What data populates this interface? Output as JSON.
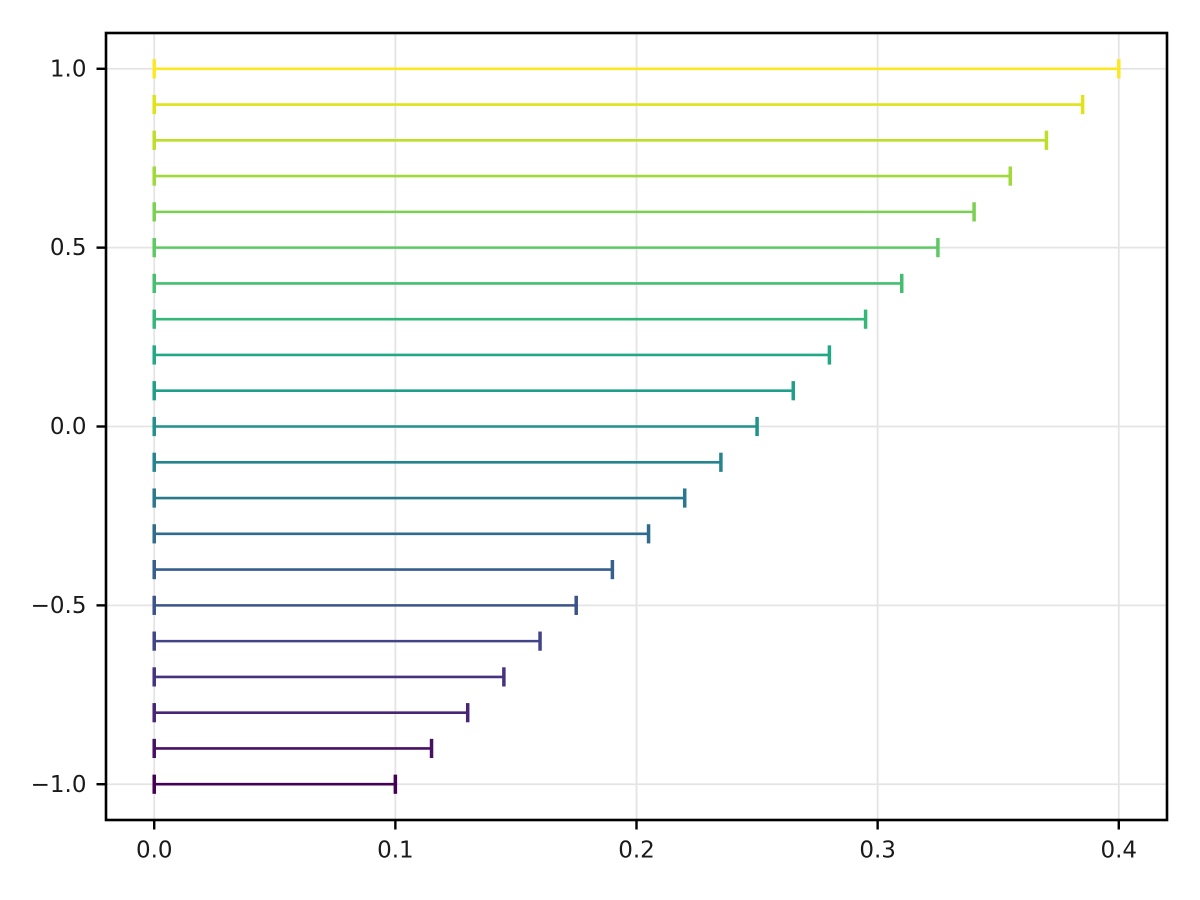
{
  "chart_data": {
    "type": "errorbar",
    "orientation": "horizontal",
    "grid": true,
    "grid_color": "#e4e4e4",
    "background_color": "#ffffff",
    "axis_color": "#000000",
    "tick_label_color": "#1a1a1a",
    "xlim": [
      -0.02,
      0.42
    ],
    "ylim": [
      -1.1,
      1.1
    ],
    "xticks": [
      0.0,
      0.1,
      0.2,
      0.3,
      0.4
    ],
    "xtick_labels": [
      "0.0",
      "0.1",
      "0.2",
      "0.3",
      "0.4"
    ],
    "yticks": [
      1.0,
      0.5,
      0.0,
      -0.5,
      -1.0
    ],
    "ytick_labels": [
      "1.0",
      "0.5",
      "0.0",
      "−0.5",
      "−1.0"
    ],
    "colormap": "viridis",
    "points": [
      {
        "y": 1.0,
        "x0": 0.0,
        "x1": 0.4,
        "color": "#fde725"
      },
      {
        "y": 0.9,
        "x0": 0.0,
        "x1": 0.385,
        "color": "#dfe318"
      },
      {
        "y": 0.8,
        "x0": 0.0,
        "x1": 0.37,
        "color": "#bddf26"
      },
      {
        "y": 0.7,
        "x0": 0.0,
        "x1": 0.355,
        "color": "#a0da39"
      },
      {
        "y": 0.6,
        "x0": 0.0,
        "x1": 0.34,
        "color": "#7ad151"
      },
      {
        "y": 0.5,
        "x0": 0.0,
        "x1": 0.325,
        "color": "#5ec962"
      },
      {
        "y": 0.4,
        "x0": 0.0,
        "x1": 0.31,
        "color": "#44bf70"
      },
      {
        "y": 0.3,
        "x0": 0.0,
        "x1": 0.295,
        "color": "#35b779"
      },
      {
        "y": 0.2,
        "x0": 0.0,
        "x1": 0.28,
        "color": "#22a884"
      },
      {
        "y": 0.1,
        "x0": 0.0,
        "x1": 0.265,
        "color": "#1f9e89"
      },
      {
        "y": 0.0,
        "x0": 0.0,
        "x1": 0.25,
        "color": "#21918c"
      },
      {
        "y": -0.1,
        "x0": 0.0,
        "x1": 0.235,
        "color": "#25858e"
      },
      {
        "y": -0.2,
        "x0": 0.0,
        "x1": 0.22,
        "color": "#2a788e"
      },
      {
        "y": -0.3,
        "x0": 0.0,
        "x1": 0.205,
        "color": "#2f6b8e"
      },
      {
        "y": -0.4,
        "x0": 0.0,
        "x1": 0.19,
        "color": "#355f8d"
      },
      {
        "y": -0.5,
        "x0": 0.0,
        "x1": 0.175,
        "color": "#3b528b"
      },
      {
        "y": -0.6,
        "x0": 0.0,
        "x1": 0.16,
        "color": "#414487"
      },
      {
        "y": -0.7,
        "x0": 0.0,
        "x1": 0.145,
        "color": "#46327e"
      },
      {
        "y": -0.8,
        "x0": 0.0,
        "x1": 0.13,
        "color": "#482475"
      },
      {
        "y": -0.9,
        "x0": 0.0,
        "x1": 0.115,
        "color": "#471063"
      },
      {
        "y": -1.0,
        "x0": 0.0,
        "x1": 0.1,
        "color": "#440154"
      }
    ]
  }
}
